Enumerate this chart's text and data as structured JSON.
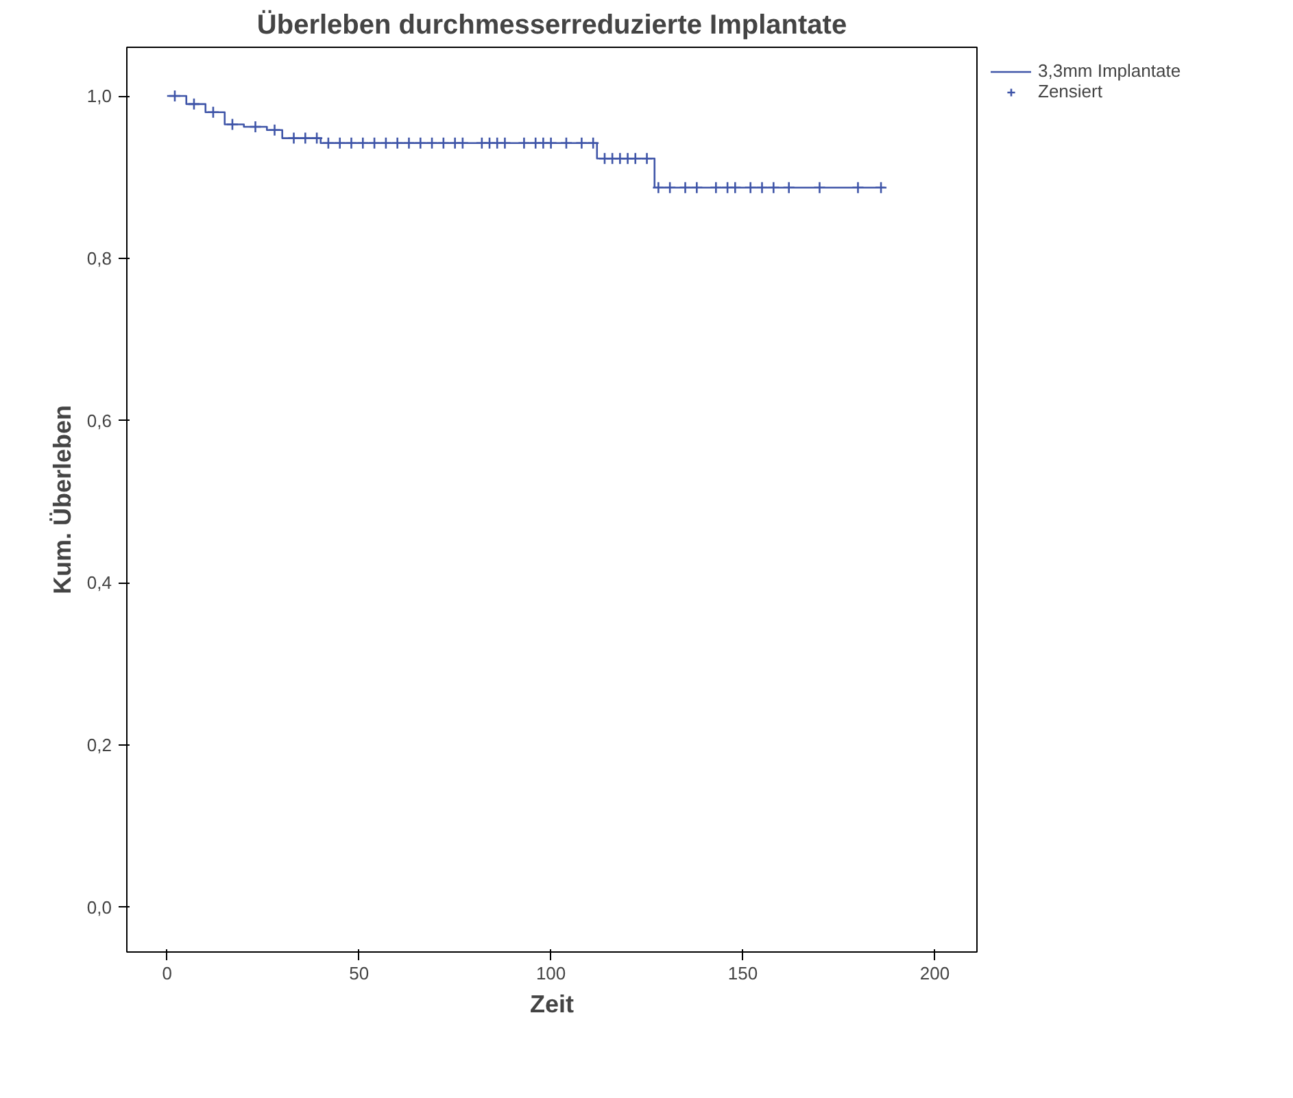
{
  "chart_data": {
    "type": "step",
    "title": "Überleben durchmesserreduzierte Implantate",
    "xlabel": "Zeit",
    "ylabel": "Kum. Überleben",
    "xlim": [
      -10.5,
      211
    ],
    "xticks": [
      0,
      50,
      100,
      150,
      200
    ],
    "ylim": [
      -0.055,
      1.06
    ],
    "yticks": [
      {
        "value": 0,
        "label": "0,0"
      },
      {
        "value": 0.2,
        "label": "0,2"
      },
      {
        "value": 0.4,
        "label": "0,4"
      },
      {
        "value": 0.6,
        "label": "0,6"
      },
      {
        "value": 0.8,
        "label": "0,8"
      },
      {
        "value": 1,
        "label": "1,0"
      }
    ],
    "grid": false,
    "legend": "top right",
    "line_style": "solid",
    "series": [
      {
        "name": "3,3mm Implantate",
        "color": "#3f55a8",
        "x": [
          0,
          5,
          10,
          15,
          20,
          26,
          30,
          40,
          112,
          127,
          187
        ],
        "values": [
          1.0,
          0.99,
          0.98,
          0.965,
          0.962,
          0.958,
          0.948,
          0.942,
          0.923,
          0.887,
          0.887
        ]
      },
      {
        "name": "Zensiert",
        "type": "scatter",
        "marker": "cross",
        "color": "#3f55a8",
        "x": [
          2,
          7,
          12,
          17,
          23,
          28,
          33,
          36,
          39,
          42,
          45,
          48,
          51,
          54,
          57,
          60,
          63,
          66,
          69,
          72,
          75,
          77,
          82,
          84,
          86,
          88,
          93,
          96,
          98,
          100,
          104,
          108,
          111,
          114,
          116,
          118,
          120,
          122,
          125,
          128,
          131,
          135,
          138,
          143,
          146,
          148,
          152,
          155,
          158,
          162,
          170,
          180,
          186
        ],
        "values": [
          1.0,
          0.99,
          0.98,
          0.965,
          0.962,
          0.958,
          0.948,
          0.948,
          0.948,
          0.942,
          0.942,
          0.942,
          0.942,
          0.942,
          0.942,
          0.942,
          0.942,
          0.942,
          0.942,
          0.942,
          0.942,
          0.942,
          0.942,
          0.942,
          0.942,
          0.942,
          0.942,
          0.942,
          0.942,
          0.942,
          0.942,
          0.942,
          0.942,
          0.923,
          0.923,
          0.923,
          0.923,
          0.923,
          0.923,
          0.887,
          0.887,
          0.887,
          0.887,
          0.887,
          0.887,
          0.887,
          0.887,
          0.887,
          0.887,
          0.887,
          0.887,
          0.887,
          0.887
        ]
      }
    ]
  }
}
